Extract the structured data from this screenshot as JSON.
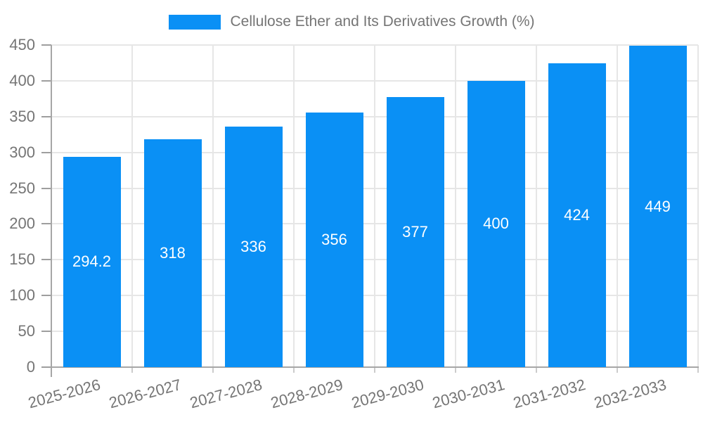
{
  "chart_data": {
    "type": "bar",
    "title": "Cellulose Ether and Its Derivatives Growth (%)",
    "legend": "Cellulose Ether and Its Derivatives Growth (%)",
    "legend_position": "top",
    "categories": [
      "2025-2026",
      "2026-2027",
      "2027-2028",
      "2028-2029",
      "2029-2030",
      "2030-2031",
      "2031-2032",
      "2032-2033"
    ],
    "series": [
      {
        "name": "Cellulose Ether and Its Derivatives Growth (%)",
        "values": [
          294.2,
          318,
          336,
          356,
          377,
          400,
          424,
          449
        ],
        "data_labels": [
          "294.2",
          "318",
          "336",
          "356",
          "377",
          "400",
          "424",
          "449"
        ]
      }
    ],
    "xlabel": "",
    "ylabel": "",
    "ylim": [
      0,
      450
    ],
    "yticks": [
      0,
      50,
      100,
      150,
      200,
      250,
      300,
      350,
      400,
      450
    ],
    "grid": true,
    "colors": {
      "bar": "#0a90f5",
      "gridline": "#e6e6e6",
      "axis_line": "#a6a6a6",
      "y_tick": "#9e9e9e",
      "x_tick": "#cccccc",
      "tick_label_text": "#757575",
      "bar_label_text": "#ffffff",
      "background": "#ffffff"
    }
  }
}
